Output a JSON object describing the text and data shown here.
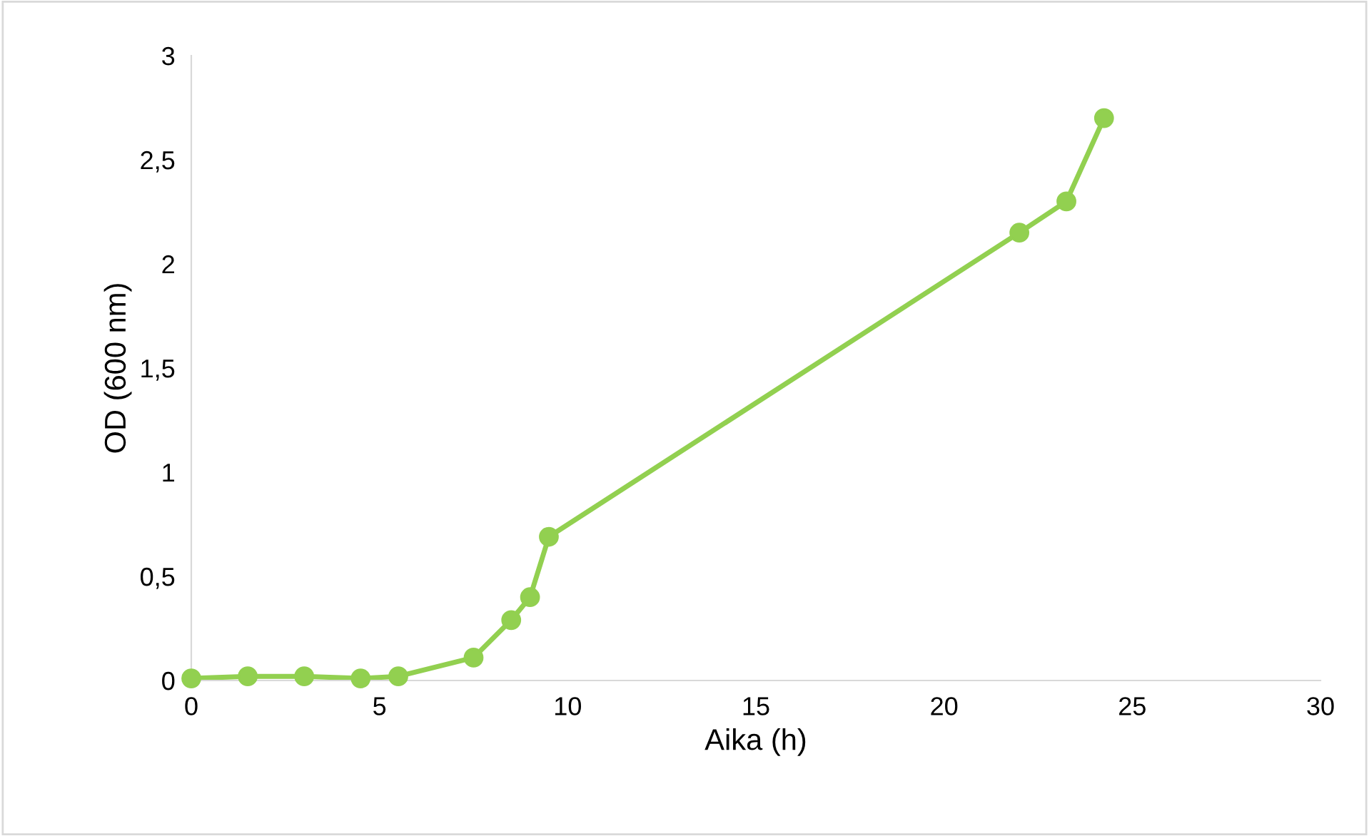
{
  "chart_data": {
    "type": "line",
    "xlabel": "Aika (h)",
    "ylabel": "OD (600 nm)",
    "x": [
      0,
      1.5,
      3,
      4.5,
      5.5,
      7.5,
      8.5,
      9,
      9.5,
      22,
      23.25,
      24.25
    ],
    "series": [
      {
        "color": "#92d050",
        "values": [
          0.01,
          0.02,
          0.02,
          0.01,
          0.02,
          0.11,
          0.29,
          0.4,
          0.69,
          2.15,
          2.3,
          2.7
        ]
      }
    ],
    "xlim": [
      0,
      30
    ],
    "xticks": [
      0,
      5,
      10,
      15,
      20,
      25,
      30
    ],
    "ylim": [
      0,
      3
    ],
    "yticks": [
      {
        "value": 0,
        "label": "0"
      },
      {
        "value": 0.5,
        "label": "0,5"
      },
      {
        "value": 1,
        "label": "1"
      },
      {
        "value": 1.5,
        "label": "1,5"
      },
      {
        "value": 2,
        "label": "2"
      },
      {
        "value": 2.5,
        "label": "2,5"
      },
      {
        "value": 3,
        "label": "3"
      }
    ],
    "grid": false,
    "legend": false,
    "marker": "circle",
    "line_style": "solid"
  }
}
